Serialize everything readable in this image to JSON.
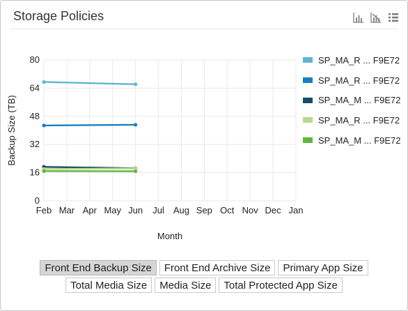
{
  "panel": {
    "title": "Storage Policies"
  },
  "toolbar": {
    "icons": [
      "bar-chart-icon",
      "hide-chart-icon",
      "list-view-icon"
    ]
  },
  "chart_data": {
    "type": "line",
    "categories": [
      "Feb",
      "Mar",
      "Apr",
      "May",
      "Jun",
      "Jul",
      "Aug",
      "Sep",
      "Oct",
      "Nov",
      "Dec",
      "Jan"
    ],
    "ylabel": "Backup Size (TB)",
    "xlabel": "Month",
    "ylim": [
      0,
      80
    ],
    "yticks": [
      0,
      16,
      32,
      48,
      64,
      80
    ],
    "grid": true,
    "legend_position": "right",
    "series": [
      {
        "name": "SP_MA_R ... F9E72",
        "color": "#5fb4d4",
        "points": [
          [
            "Feb",
            67.5
          ],
          [
            "Jun",
            66.2
          ]
        ]
      },
      {
        "name": "SP_MA_R ... F9E72",
        "color": "#1a7fc0",
        "points": [
          [
            "Feb",
            42.8
          ],
          [
            "Jun",
            43.2
          ]
        ]
      },
      {
        "name": "SP_MA_M ... F9E72",
        "color": "#174d6b",
        "points": [
          [
            "Feb",
            19.3
          ],
          [
            "Jun",
            18.5
          ]
        ]
      },
      {
        "name": "SP_MA_R ... F9E72",
        "color": "#b7d98a",
        "points": [
          [
            "Feb",
            18.1
          ],
          [
            "Jun",
            18.4
          ]
        ]
      },
      {
        "name": "SP_MA_M ... F9E72",
        "color": "#5fb53a",
        "points": [
          [
            "Feb",
            16.9
          ],
          [
            "Jun",
            16.8
          ]
        ]
      }
    ]
  },
  "metric_buttons": {
    "row1": [
      {
        "label": "Front End Backup Size",
        "active": true
      },
      {
        "label": "Front End Archive Size",
        "active": false
      },
      {
        "label": "Primary App Size",
        "active": false
      }
    ],
    "row2": [
      {
        "label": "Total Media Size",
        "active": false
      },
      {
        "label": "Media Size",
        "active": false
      },
      {
        "label": "Total Protected App Size",
        "active": false
      }
    ]
  }
}
